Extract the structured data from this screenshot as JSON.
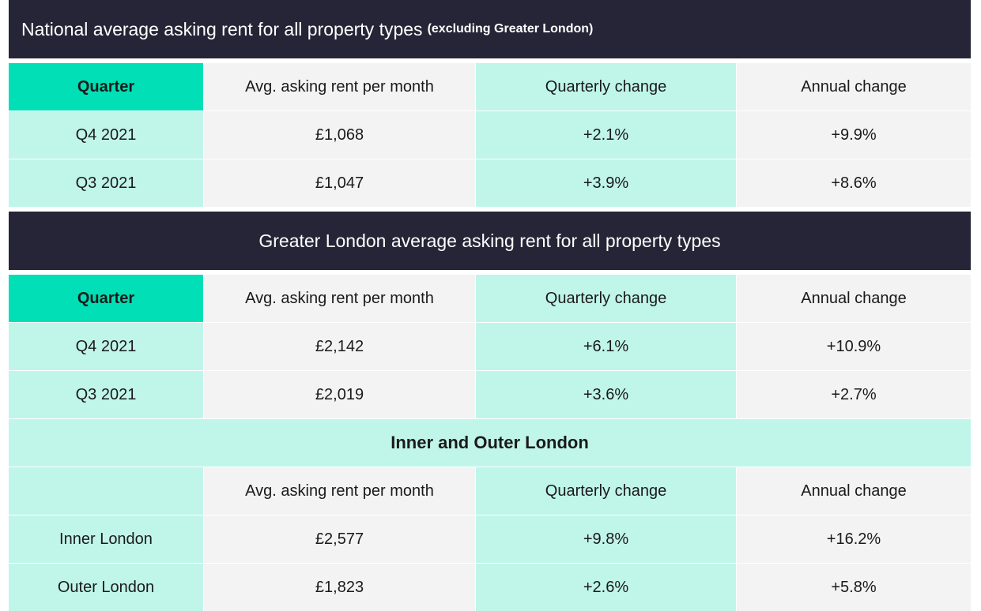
{
  "national": {
    "title": "National average asking rent for all property types",
    "title_note": "(excluding Greater London)",
    "headers": [
      "Quarter",
      "Avg. asking rent per month",
      "Quarterly change",
      "Annual change"
    ],
    "rows": [
      [
        "Q4 2021",
        "£1,068",
        "+2.1%",
        "+9.9%"
      ],
      [
        "Q3 2021",
        "£1,047",
        "+3.9%",
        "+8.6%"
      ]
    ]
  },
  "london": {
    "title": "Greater London average asking rent for all property types",
    "headers": [
      "Quarter",
      "Avg. asking rent per month",
      "Quarterly change",
      "Annual change"
    ],
    "rows": [
      [
        "Q4 2021",
        "£2,142",
        "+6.1%",
        "+10.9%"
      ],
      [
        "Q3 2021",
        "£2,019",
        "+3.6%",
        "+2.7%"
      ]
    ]
  },
  "inner_outer": {
    "title": "Inner and Outer London",
    "headers": [
      "",
      "Avg. asking rent per month",
      "Quarterly change",
      "Annual change"
    ],
    "rows": [
      [
        "Inner London",
        "£2,577",
        "+9.8%",
        "+16.2%"
      ],
      [
        "Outer London",
        "£1,823",
        "+2.6%",
        "+5.8%"
      ]
    ]
  },
  "colors": {
    "banner": "#262537",
    "accent": "#00dfb5",
    "mint": "#c0f5ea",
    "grey": "#f3f3f3"
  }
}
